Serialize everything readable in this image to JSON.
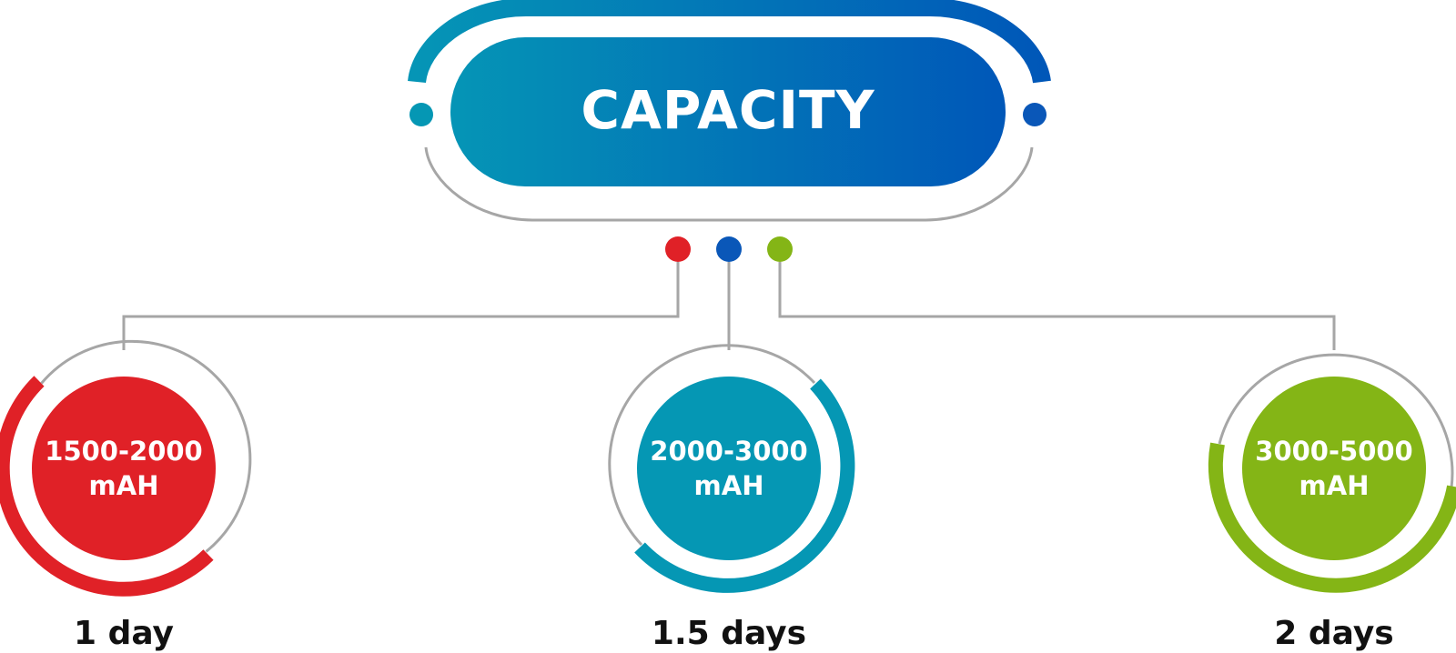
{
  "header": {
    "title": "CAPACITY"
  },
  "colors": {
    "gradient_start": "#0595b6",
    "gradient_end": "#0057b8",
    "gray_line": "#a6a6a6",
    "red": "#e02127",
    "teal": "#0597b4",
    "blue": "#0a57b8",
    "green": "#84b516"
  },
  "nodes": [
    {
      "range": "1500-2000",
      "unit": "mAH",
      "duration": "1 day",
      "color": "#e02127"
    },
    {
      "range": "2000-3000",
      "unit": "mAH",
      "duration": "1.5 days",
      "color": "#0597b4"
    },
    {
      "range": "3000-5000",
      "unit": "mAH",
      "duration": "2 days",
      "color": "#84b516"
    }
  ]
}
